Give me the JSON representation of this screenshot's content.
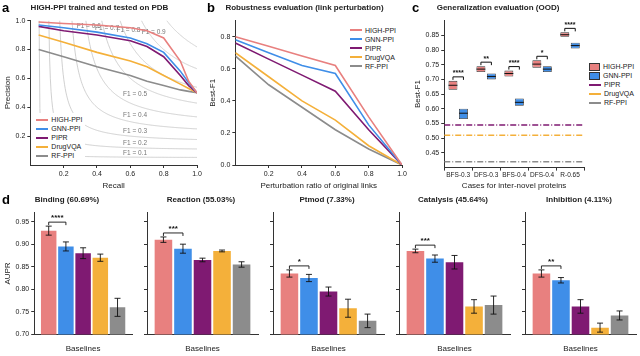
{
  "chart_data": [
    {
      "panel": "a",
      "type": "line",
      "title": "HIGH-PPI trained and tested on PDB",
      "x_label": "Recall",
      "y_label": "Precision",
      "x": [
        0.05,
        0.2,
        0.4,
        0.6,
        0.7,
        0.8,
        0.9,
        0.95,
        1.0
      ],
      "series": [
        {
          "name": "HIGH-PPI",
          "color": "#e8807f",
          "line_style": "solid",
          "values": [
            0.99,
            0.98,
            0.97,
            0.95,
            0.93,
            0.88,
            0.72,
            0.58,
            0.5
          ]
        },
        {
          "name": "GNN-PPI",
          "color": "#3f8ee8",
          "line_style": "solid",
          "values": [
            0.97,
            0.95,
            0.92,
            0.88,
            0.84,
            0.78,
            0.65,
            0.57,
            0.5
          ]
        },
        {
          "name": "PIPR",
          "color": "#7f1a72",
          "line_style": "solid",
          "values": [
            0.96,
            0.93,
            0.9,
            0.86,
            0.82,
            0.75,
            0.62,
            0.55,
            0.5
          ]
        },
        {
          "name": "DrugVQA",
          "color": "#f4b03a",
          "line_style": "solid",
          "values": [
            0.9,
            0.85,
            0.78,
            0.72,
            0.68,
            0.62,
            0.56,
            0.53,
            0.5
          ]
        },
        {
          "name": "RF-PPI",
          "color": "#8c8c8c",
          "line_style": "solid",
          "values": [
            0.8,
            0.75,
            0.68,
            0.62,
            0.58,
            0.55,
            0.52,
            0.51,
            0.5
          ]
        }
      ],
      "iso_f1": [
        {
          "value": 0.1,
          "label": "F1 = 0.1"
        },
        {
          "value": 0.2,
          "label": "F1 = 0.2"
        },
        {
          "value": 0.3,
          "label": "F1 = 0.3"
        },
        {
          "value": 0.4,
          "label": "F1 = 0.4"
        },
        {
          "value": 0.5,
          "label": "F1 = 0.5"
        },
        {
          "value": 0.6,
          "label": "F1 = 0.6"
        },
        {
          "value": 0.7,
          "label": "F1 = 0.7"
        },
        {
          "value": 0.8,
          "label": "F1 = 0.8"
        },
        {
          "value": 0.9,
          "label": "F1 = 0.9"
        }
      ],
      "xlim": [
        0,
        1
      ],
      "xticks": [
        0.2,
        0.4,
        0.6,
        0.8,
        {
          "value": 1,
          "label": "1.0"
        }
      ],
      "ylim": [
        0,
        1
      ],
      "yticks": [
        0.2,
        0.4,
        0.6,
        0.8,
        {
          "value": 1,
          "label": "1.0"
        }
      ],
      "grid": false,
      "legend": "lower left"
    },
    {
      "panel": "b",
      "type": "line",
      "title": "Robustness evaluation (link perturbation)",
      "x_label": "Perturbation ratio of original links",
      "y_label": "Best-F1",
      "x": [
        0,
        0.2,
        0.4,
        0.6,
        0.8,
        1.0
      ],
      "series": [
        {
          "name": "HIGH-PPI",
          "color": "#e8807f",
          "line_style": "solid",
          "values": [
            0.8,
            0.74,
            0.68,
            0.62,
            0.3,
            0.0
          ]
        },
        {
          "name": "GNN-PPI",
          "color": "#3f8ee8",
          "line_style": "solid",
          "values": [
            0.78,
            0.7,
            0.62,
            0.57,
            0.25,
            0.0
          ]
        },
        {
          "name": "PIPR",
          "color": "#7f1a72",
          "line_style": "solid",
          "values": [
            0.76,
            0.66,
            0.56,
            0.46,
            0.22,
            0.0
          ]
        },
        {
          "name": "DrugVQA",
          "color": "#f4b03a",
          "line_style": "solid",
          "values": [
            0.7,
            0.55,
            0.4,
            0.28,
            0.12,
            0.0
          ]
        },
        {
          "name": "RF-PPI",
          "color": "#8c8c8c",
          "line_style": "solid",
          "values": [
            0.68,
            0.5,
            0.36,
            0.22,
            0.1,
            0.0
          ]
        }
      ],
      "xlim": [
        0,
        1
      ],
      "xticks": [
        0.2,
        0.4,
        0.6,
        0.8,
        {
          "value": 1,
          "label": "1.0"
        }
      ],
      "ylim": [
        0,
        0.9
      ],
      "yticks": [
        {
          "value": 0,
          "label": "0.0"
        },
        0.2,
        0.4,
        0.6,
        0.8
      ],
      "grid": false,
      "legend": "upper right"
    },
    {
      "panel": "c",
      "type": "box",
      "title": "Generalization evaluation (OOD)",
      "x_label": "Cases for inter-novel proteins",
      "y_label": "Best-F1",
      "categories": [
        "BFS-0.3",
        "DFS-0.3",
        "BFS-0.4",
        "DFS-0.4",
        "R-0.65"
      ],
      "series": [
        {
          "name": "HIGH-PPI",
          "color": "#e8807f",
          "values": [
            0.68,
            0.735,
            0.72,
            0.752,
            0.852
          ],
          "box": [
            [
              0.665,
              0.695
            ],
            [
              0.725,
              0.745
            ],
            [
              0.71,
              0.73
            ],
            [
              0.74,
              0.765
            ],
            [
              0.845,
              0.86
            ]
          ]
        },
        {
          "name": "GNN-PPI",
          "color": "#3f8ee8",
          "values": [
            0.585,
            0.71,
            0.622,
            0.735,
            0.815
          ],
          "box": [
            [
              0.565,
              0.6
            ],
            [
              0.7,
              0.72
            ],
            [
              0.61,
              0.635
            ],
            [
              0.725,
              0.745
            ],
            [
              0.805,
              0.825
            ]
          ]
        }
      ],
      "reference_lines": [
        {
          "name": "PIPR",
          "color": "#7f1a72",
          "value": 0.545,
          "line_style": "dashdot"
        },
        {
          "name": "DrugVQA",
          "color": "#f4b03a",
          "value": 0.51,
          "line_style": "dashdot"
        },
        {
          "name": "RF-PPI",
          "color": "#8c8c8c",
          "value": 0.42,
          "line_style": "dashdot"
        }
      ],
      "significance": [
        "****",
        "**",
        "****",
        "*",
        "****"
      ],
      "ylim": [
        0.4,
        0.9
      ],
      "yticks": [
        0.45,
        {
          "value": 0.5,
          "label": "0.50"
        },
        0.55,
        {
          "value": 0.6,
          "label": "0.60"
        },
        0.65,
        {
          "value": 0.7,
          "label": "0.70"
        },
        0.75,
        {
          "value": 0.8,
          "label": "0.80"
        },
        0.85
      ],
      "grid": false,
      "legend": "right"
    },
    {
      "panel": "d",
      "type": "bar",
      "title": "Binding (60.69%)",
      "y_label": "AUPR",
      "categories": [
        "Baselines"
      ],
      "series": [
        {
          "color": "#e8807f",
          "values": [
            0.93
          ],
          "errors": [
            0.01
          ]
        },
        {
          "color": "#3f8ee8",
          "values": [
            0.895
          ],
          "errors": [
            0.01
          ]
        },
        {
          "color": "#7f1a72",
          "values": [
            0.88
          ],
          "errors": [
            0.012
          ]
        },
        {
          "color": "#f4b03a",
          "values": [
            0.87
          ],
          "errors": [
            0.008
          ]
        },
        {
          "color": "#8c8c8c",
          "values": [
            0.76
          ],
          "errors": [
            0.02
          ]
        }
      ],
      "significance": "****",
      "ylim": [
        0.7,
        0.97
      ],
      "yticks": [
        {
          "value": 0.7,
          "label": "0.70"
        },
        0.75,
        {
          "value": 0.8,
          "label": "0.80"
        },
        0.85,
        {
          "value": 0.9,
          "label": "0.90"
        },
        0.95
      ],
      "grid": false
    },
    {
      "type": "bar",
      "title": "Reaction (55.03%)",
      "categories": [
        "Baselines"
      ],
      "series": [
        {
          "color": "#e8807f",
          "values": [
            0.91
          ],
          "errors": [
            0.006
          ]
        },
        {
          "color": "#3f8ee8",
          "values": [
            0.89
          ],
          "errors": [
            0.01
          ]
        },
        {
          "color": "#7f1a72",
          "values": [
            0.865
          ],
          "errors": [
            0.004
          ]
        },
        {
          "color": "#f4b03a",
          "values": [
            0.885
          ],
          "errors": [
            0.002
          ]
        },
        {
          "color": "#8c8c8c",
          "values": [
            0.855
          ],
          "errors": [
            0.006
          ]
        }
      ],
      "significance": "***",
      "ylim": [
        0.7,
        0.97
      ],
      "yticks": [
        {
          "value": 0.7,
          "label": "0.70"
        },
        0.75,
        {
          "value": 0.8,
          "label": "0.80"
        },
        0.85,
        {
          "value": 0.9,
          "label": "0.90"
        },
        0.95
      ],
      "grid": false,
      "tick_labels": "x"
    },
    {
      "type": "bar",
      "title": "Ptmod (7.33%)",
      "categories": [
        "Baselines"
      ],
      "series": [
        {
          "color": "#e8807f",
          "values": [
            0.835
          ],
          "errors": [
            0.008
          ]
        },
        {
          "color": "#3f8ee8",
          "values": [
            0.825
          ],
          "errors": [
            0.008
          ]
        },
        {
          "color": "#7f1a72",
          "values": [
            0.795
          ],
          "errors": [
            0.01
          ]
        },
        {
          "color": "#f4b03a",
          "values": [
            0.758
          ],
          "errors": [
            0.02
          ]
        },
        {
          "color": "#8c8c8c",
          "values": [
            0.73
          ],
          "errors": [
            0.015
          ]
        }
      ],
      "significance": "*",
      "ylim": [
        0.7,
        0.97
      ],
      "yticks": [
        {
          "value": 0.7,
          "label": "0.70"
        },
        0.75,
        {
          "value": 0.8,
          "label": "0.80"
        },
        0.85,
        {
          "value": 0.9,
          "label": "0.90"
        },
        0.95
      ],
      "grid": false,
      "tick_labels": "x"
    },
    {
      "type": "bar",
      "title": "Catalysis (45.64%)",
      "categories": [
        "Baselines"
      ],
      "series": [
        {
          "color": "#e8807f",
          "values": [
            0.885
          ],
          "errors": [
            0.004
          ]
        },
        {
          "color": "#3f8ee8",
          "values": [
            0.868
          ],
          "errors": [
            0.008
          ]
        },
        {
          "color": "#7f1a72",
          "values": [
            0.86
          ],
          "errors": [
            0.015
          ]
        },
        {
          "color": "#f4b03a",
          "values": [
            0.762
          ],
          "errors": [
            0.015
          ]
        },
        {
          "color": "#8c8c8c",
          "values": [
            0.765
          ],
          "errors": [
            0.02
          ]
        }
      ],
      "significance": "***",
      "ylim": [
        0.7,
        0.97
      ],
      "yticks": [
        {
          "value": 0.7,
          "label": "0.70"
        },
        0.75,
        {
          "value": 0.8,
          "label": "0.80"
        },
        0.85,
        {
          "value": 0.9,
          "label": "0.90"
        },
        0.95
      ],
      "grid": false,
      "tick_labels": "x"
    },
    {
      "type": "bar",
      "title": "Inhibition (4.11%)",
      "categories": [
        "Baselines"
      ],
      "series": [
        {
          "color": "#e8807f",
          "values": [
            0.835
          ],
          "errors": [
            0.008
          ]
        },
        {
          "color": "#3f8ee8",
          "values": [
            0.82
          ],
          "errors": [
            0.006
          ]
        },
        {
          "color": "#7f1a72",
          "values": [
            0.762
          ],
          "errors": [
            0.015
          ]
        },
        {
          "color": "#f4b03a",
          "values": [
            0.715
          ],
          "errors": [
            0.01
          ]
        },
        {
          "color": "#8c8c8c",
          "values": [
            0.742
          ],
          "errors": [
            0.01
          ]
        }
      ],
      "significance": "**",
      "ylim": [
        0.7,
        0.97
      ],
      "yticks": [
        {
          "value": 0.7,
          "label": "0.70"
        },
        0.75,
        {
          "value": 0.8,
          "label": "0.80"
        },
        0.85,
        {
          "value": 0.9,
          "label": "0.90"
        },
        0.95
      ],
      "grid": false,
      "tick_labels": "x"
    }
  ]
}
